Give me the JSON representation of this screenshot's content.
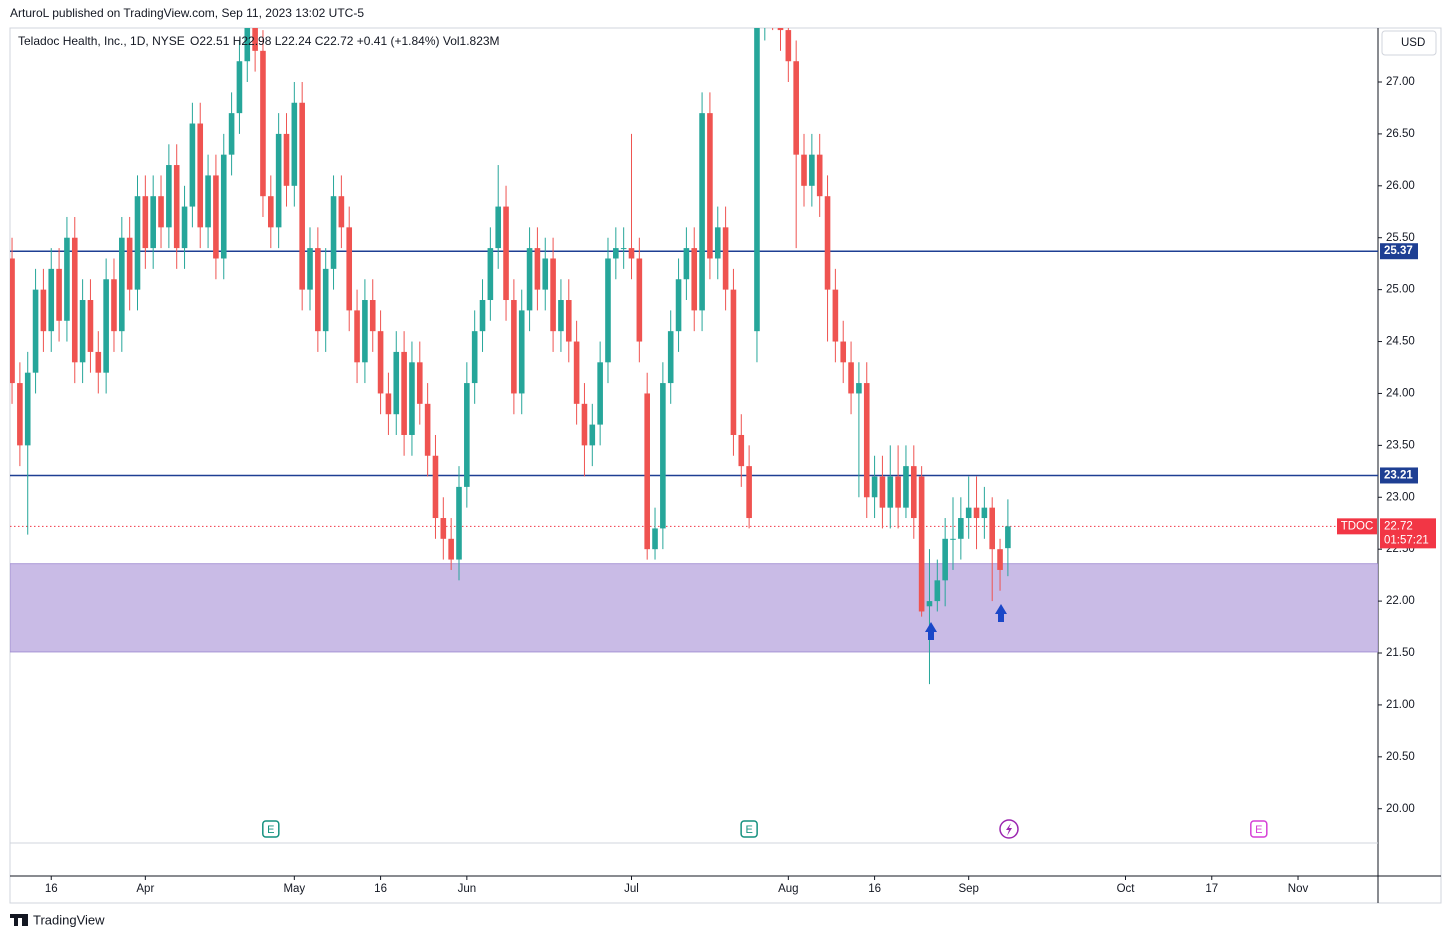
{
  "header": {
    "publisher": "ArturoL published on TradingView.com, Sep 11, 2023 13:02 UTC-5"
  },
  "footer": {
    "brand": "TradingView"
  },
  "chart_data": {
    "type": "candlestick",
    "title": "Teladoc Health, Inc., 1D, NYSE",
    "legend_values": "O22.51 H22.98 L22.24 C22.72 +0.41 (+1.84%) Vol1.823M",
    "symbol": "TDOC",
    "countdown": "01:57:21",
    "currency": "USD",
    "up_color": "#26a69a",
    "down_color": "#ef5350",
    "open": [
      25.3,
      24.1,
      23.5,
      24.2,
      25.0,
      24.6,
      25.2,
      24.7,
      25.5,
      24.3,
      24.9,
      24.4,
      24.2,
      25.1,
      24.6,
      25.5,
      25.0,
      25.9,
      25.4,
      25.9,
      25.6,
      26.2,
      25.4,
      25.8,
      26.6,
      25.6,
      26.1,
      25.3,
      26.3,
      26.7,
      27.2,
      27.6,
      27.3,
      25.9,
      25.6,
      26.5,
      26.0,
      26.8,
      25.0,
      25.4,
      24.6,
      25.2,
      25.9,
      25.6,
      24.8,
      24.3,
      24.9,
      24.6,
      24.0,
      23.8,
      24.4,
      23.6,
      24.3,
      23.9,
      23.4,
      22.8,
      22.6,
      22.4,
      23.1,
      24.1,
      24.6,
      24.9,
      25.4,
      25.8,
      24.9,
      24.0,
      24.8,
      25.4,
      25.0,
      25.3,
      24.6,
      24.9,
      24.5,
      23.9,
      23.5,
      23.7,
      24.3,
      25.3,
      25.4,
      25.4,
      25.3,
      24.0,
      22.5,
      22.7,
      24.1,
      24.6,
      25.1,
      25.4,
      24.8,
      26.7,
      25.3,
      25.6,
      25.0,
      23.6,
      23.3,
      24.6,
      27.6,
      27.8,
      27.7,
      27.5,
      27.2,
      26.3,
      26.0,
      26.3,
      25.9,
      25.0,
      24.5,
      24.3,
      24.0,
      24.1,
      23.0,
      23.2,
      22.9,
      23.2,
      22.9,
      23.3,
      23.2,
      21.95,
      22.0,
      22.2,
      22.6,
      22.6,
      22.8,
      22.9,
      22.8,
      22.9,
      22.5,
      22.51
    ],
    "high": [
      25.5,
      24.3,
      24.4,
      25.2,
      25.2,
      25.4,
      25.4,
      25.7,
      25.7,
      25.1,
      25.1,
      24.6,
      25.3,
      25.3,
      25.7,
      25.7,
      26.1,
      26.1,
      26.1,
      26.1,
      26.4,
      26.4,
      26.0,
      26.8,
      26.8,
      26.3,
      26.3,
      26.5,
      26.9,
      27.4,
      27.8,
      27.8,
      27.5,
      26.1,
      26.7,
      26.7,
      27.0,
      27.0,
      25.6,
      25.6,
      25.4,
      26.1,
      26.1,
      25.8,
      25.0,
      25.1,
      25.1,
      24.8,
      24.2,
      24.6,
      24.6,
      24.5,
      24.5,
      24.1,
      23.6,
      23.0,
      22.8,
      23.3,
      24.3,
      24.8,
      25.1,
      25.6,
      26.2,
      26.0,
      25.1,
      25.0,
      25.6,
      25.6,
      25.5,
      25.5,
      25.1,
      25.1,
      24.7,
      24.1,
      23.9,
      24.5,
      25.5,
      25.6,
      25.6,
      26.5,
      25.5,
      24.2,
      22.9,
      24.3,
      24.8,
      25.3,
      25.6,
      25.6,
      26.9,
      26.9,
      25.8,
      25.8,
      25.2,
      23.8,
      23.5,
      27.8,
      28.0,
      28.0,
      27.9,
      27.7,
      27.4,
      26.5,
      26.5,
      26.5,
      26.1,
      25.2,
      24.7,
      24.5,
      24.3,
      24.3,
      23.4,
      23.4,
      23.5,
      23.5,
      23.5,
      23.5,
      23.3,
      22.5,
      22.4,
      22.8,
      23.0,
      23.0,
      23.2,
      23.2,
      23.1,
      23.0,
      22.6,
      22.98
    ],
    "low": [
      23.9,
      23.3,
      22.64,
      24.0,
      24.4,
      24.4,
      24.5,
      24.5,
      24.1,
      24.1,
      24.2,
      24.0,
      24.0,
      24.4,
      24.4,
      24.8,
      24.8,
      25.2,
      25.2,
      25.4,
      25.4,
      25.2,
      25.2,
      25.6,
      25.4,
      25.4,
      25.1,
      25.1,
      26.1,
      26.5,
      27.0,
      27.1,
      25.7,
      25.4,
      25.4,
      25.8,
      25.8,
      24.8,
      24.8,
      24.4,
      24.4,
      25.0,
      25.4,
      24.6,
      24.1,
      24.1,
      24.4,
      23.8,
      23.6,
      23.6,
      23.4,
      23.4,
      23.7,
      23.2,
      22.6,
      22.4,
      22.3,
      22.2,
      22.9,
      23.9,
      24.4,
      24.7,
      25.2,
      24.7,
      23.8,
      23.8,
      24.6,
      24.8,
      24.8,
      24.4,
      24.4,
      24.3,
      23.7,
      23.2,
      23.3,
      23.5,
      24.1,
      25.1,
      25.2,
      25.1,
      24.3,
      22.4,
      22.4,
      22.5,
      23.9,
      24.4,
      24.9,
      24.6,
      24.6,
      25.1,
      25.1,
      24.8,
      23.4,
      23.1,
      22.7,
      24.3,
      27.4,
      27.5,
      27.3,
      27.0,
      25.4,
      25.8,
      25.8,
      25.7,
      24.5,
      24.3,
      24.1,
      23.8,
      23.0,
      22.8,
      22.8,
      22.7,
      22.7,
      22.7,
      22.8,
      22.6,
      21.85,
      21.2,
      21.9,
      21.95,
      22.3,
      22.4,
      22.6,
      22.5,
      22.6,
      22.0,
      22.1,
      22.24
    ],
    "close": [
      24.1,
      23.5,
      24.2,
      25.0,
      24.6,
      25.2,
      24.7,
      25.5,
      24.3,
      24.9,
      24.4,
      24.2,
      25.1,
      24.6,
      25.5,
      25.0,
      25.9,
      25.4,
      25.9,
      25.6,
      26.2,
      25.4,
      25.8,
      26.6,
      25.6,
      26.1,
      25.3,
      26.3,
      26.7,
      27.2,
      27.6,
      27.3,
      25.9,
      25.6,
      26.5,
      26.0,
      26.8,
      25.0,
      25.4,
      24.6,
      25.2,
      25.9,
      25.6,
      24.8,
      24.3,
      24.9,
      24.6,
      24.0,
      23.8,
      24.4,
      23.6,
      24.3,
      23.9,
      23.4,
      22.8,
      22.6,
      22.4,
      23.1,
      24.1,
      24.6,
      24.9,
      25.4,
      25.8,
      24.9,
      24.0,
      24.8,
      25.4,
      25.0,
      25.3,
      24.6,
      24.9,
      24.5,
      23.9,
      23.5,
      23.7,
      24.3,
      25.3,
      25.4,
      25.4,
      25.3,
      24.5,
      22.5,
      22.7,
      24.1,
      24.6,
      25.1,
      25.4,
      24.8,
      26.7,
      25.3,
      25.6,
      25.0,
      23.6,
      23.3,
      22.8,
      27.6,
      27.8,
      27.7,
      27.5,
      27.2,
      26.3,
      26.0,
      26.3,
      25.9,
      25.0,
      24.5,
      24.3,
      24.0,
      24.1,
      23.0,
      23.2,
      22.9,
      23.2,
      22.9,
      23.3,
      22.8,
      21.9,
      22.0,
      22.2,
      22.6,
      22.6,
      22.8,
      22.9,
      22.8,
      22.9,
      22.5,
      22.3,
      22.72
    ],
    "levels": [
      25.37,
      23.21
    ],
    "level_color": "#1e3f93",
    "zone": [
      21.51,
      22.36
    ],
    "zone_color": "#c9bbe6",
    "last_color": "#f23645",
    "xlim": [
      -0.26,
      174.2
    ],
    "xticks": [
      {
        "value": 5,
        "label": "16"
      },
      {
        "value": 17,
        "label": "Apr"
      },
      {
        "value": 36,
        "label": "May"
      },
      {
        "value": 47,
        "label": "16"
      },
      {
        "value": 58,
        "label": "Jun"
      },
      {
        "value": 79,
        "label": "Jul"
      },
      {
        "value": 99,
        "label": "Aug"
      },
      {
        "value": 110,
        "label": "16"
      },
      {
        "value": 122,
        "label": "Sep"
      },
      {
        "value": 142,
        "label": "Oct"
      },
      {
        "value": 153,
        "label": "17"
      },
      {
        "value": 164,
        "label": "Nov"
      }
    ],
    "ylim": [
      19.67,
      27.52
    ],
    "yticks": [
      {
        "value": 20,
        "label": "20.00"
      },
      {
        "value": 20.5,
        "label": "20.50"
      },
      {
        "value": 21,
        "label": "21.00"
      },
      {
        "value": 21.5,
        "label": "21.50"
      },
      {
        "value": 22,
        "label": "22.00"
      },
      {
        "value": 22.5,
        "label": "22.50"
      },
      {
        "value": 23,
        "label": "23.00"
      },
      {
        "value": 23.5,
        "label": "23.50"
      },
      {
        "value": 24,
        "label": "24.00"
      },
      {
        "value": 24.5,
        "label": "24.50"
      },
      {
        "value": 25,
        "label": "25.00"
      },
      {
        "value": 25.5,
        "label": "25.50"
      },
      {
        "value": 26,
        "label": "26.00"
      },
      {
        "value": 26.5,
        "label": "26.50"
      },
      {
        "value": 27,
        "label": "27.00"
      }
    ],
    "events": [
      {
        "label": "E",
        "x": 33,
        "color": "#14917f"
      },
      {
        "label": "E",
        "x": 94,
        "color": "#14917f"
      },
      {
        "label": "E",
        "x": 159,
        "color": "#d63fd6"
      }
    ]
  }
}
